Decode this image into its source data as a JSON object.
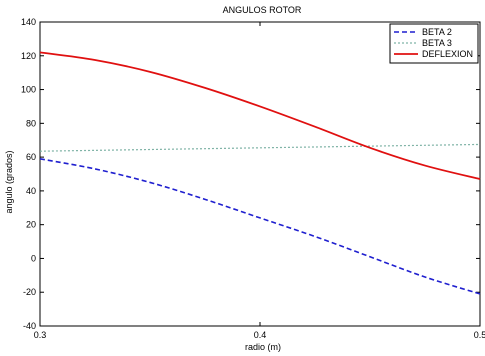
{
  "chart_data": {
    "type": "line",
    "title": "ANGULOS ROTOR",
    "xlabel": "radio (m)",
    "ylabel": "angulo (grados)",
    "xlim": [
      0.3,
      0.5
    ],
    "ylim": [
      -40,
      140
    ],
    "xticks": [
      0.3,
      0.4,
      0.5
    ],
    "xtick_labels": [
      "0.3",
      "0.4",
      "0.5"
    ],
    "yticks": [
      -40,
      -20,
      0,
      20,
      40,
      60,
      80,
      100,
      120,
      140
    ],
    "ytick_labels": [
      "-40",
      "-20",
      "0",
      "20",
      "40",
      "60",
      "80",
      "100",
      "120",
      "140"
    ],
    "grid": false,
    "legend_position": "top-right",
    "x": [
      0.3,
      0.325,
      0.35,
      0.375,
      0.4,
      0.425,
      0.45,
      0.475,
      0.5
    ],
    "series": [
      {
        "name": "BETA 2",
        "color": "#1f1fcf",
        "dash": "5,3",
        "width": 1.6,
        "values": [
          59,
          53,
          45,
          35,
          24,
          13,
          1,
          -11,
          -21
        ]
      },
      {
        "name": "BETA 3",
        "color": "#7fb3a6",
        "dash": "2,2",
        "width": 1.2,
        "values": [
          63.5,
          64,
          64.5,
          65,
          65.5,
          66,
          66.5,
          67,
          67.5
        ]
      },
      {
        "name": "DEFLEXION",
        "color": "#e01010",
        "dash": "",
        "width": 1.8,
        "values": [
          122,
          117.5,
          110.5,
          101,
          90,
          78,
          65.5,
          55,
          47
        ]
      }
    ]
  }
}
